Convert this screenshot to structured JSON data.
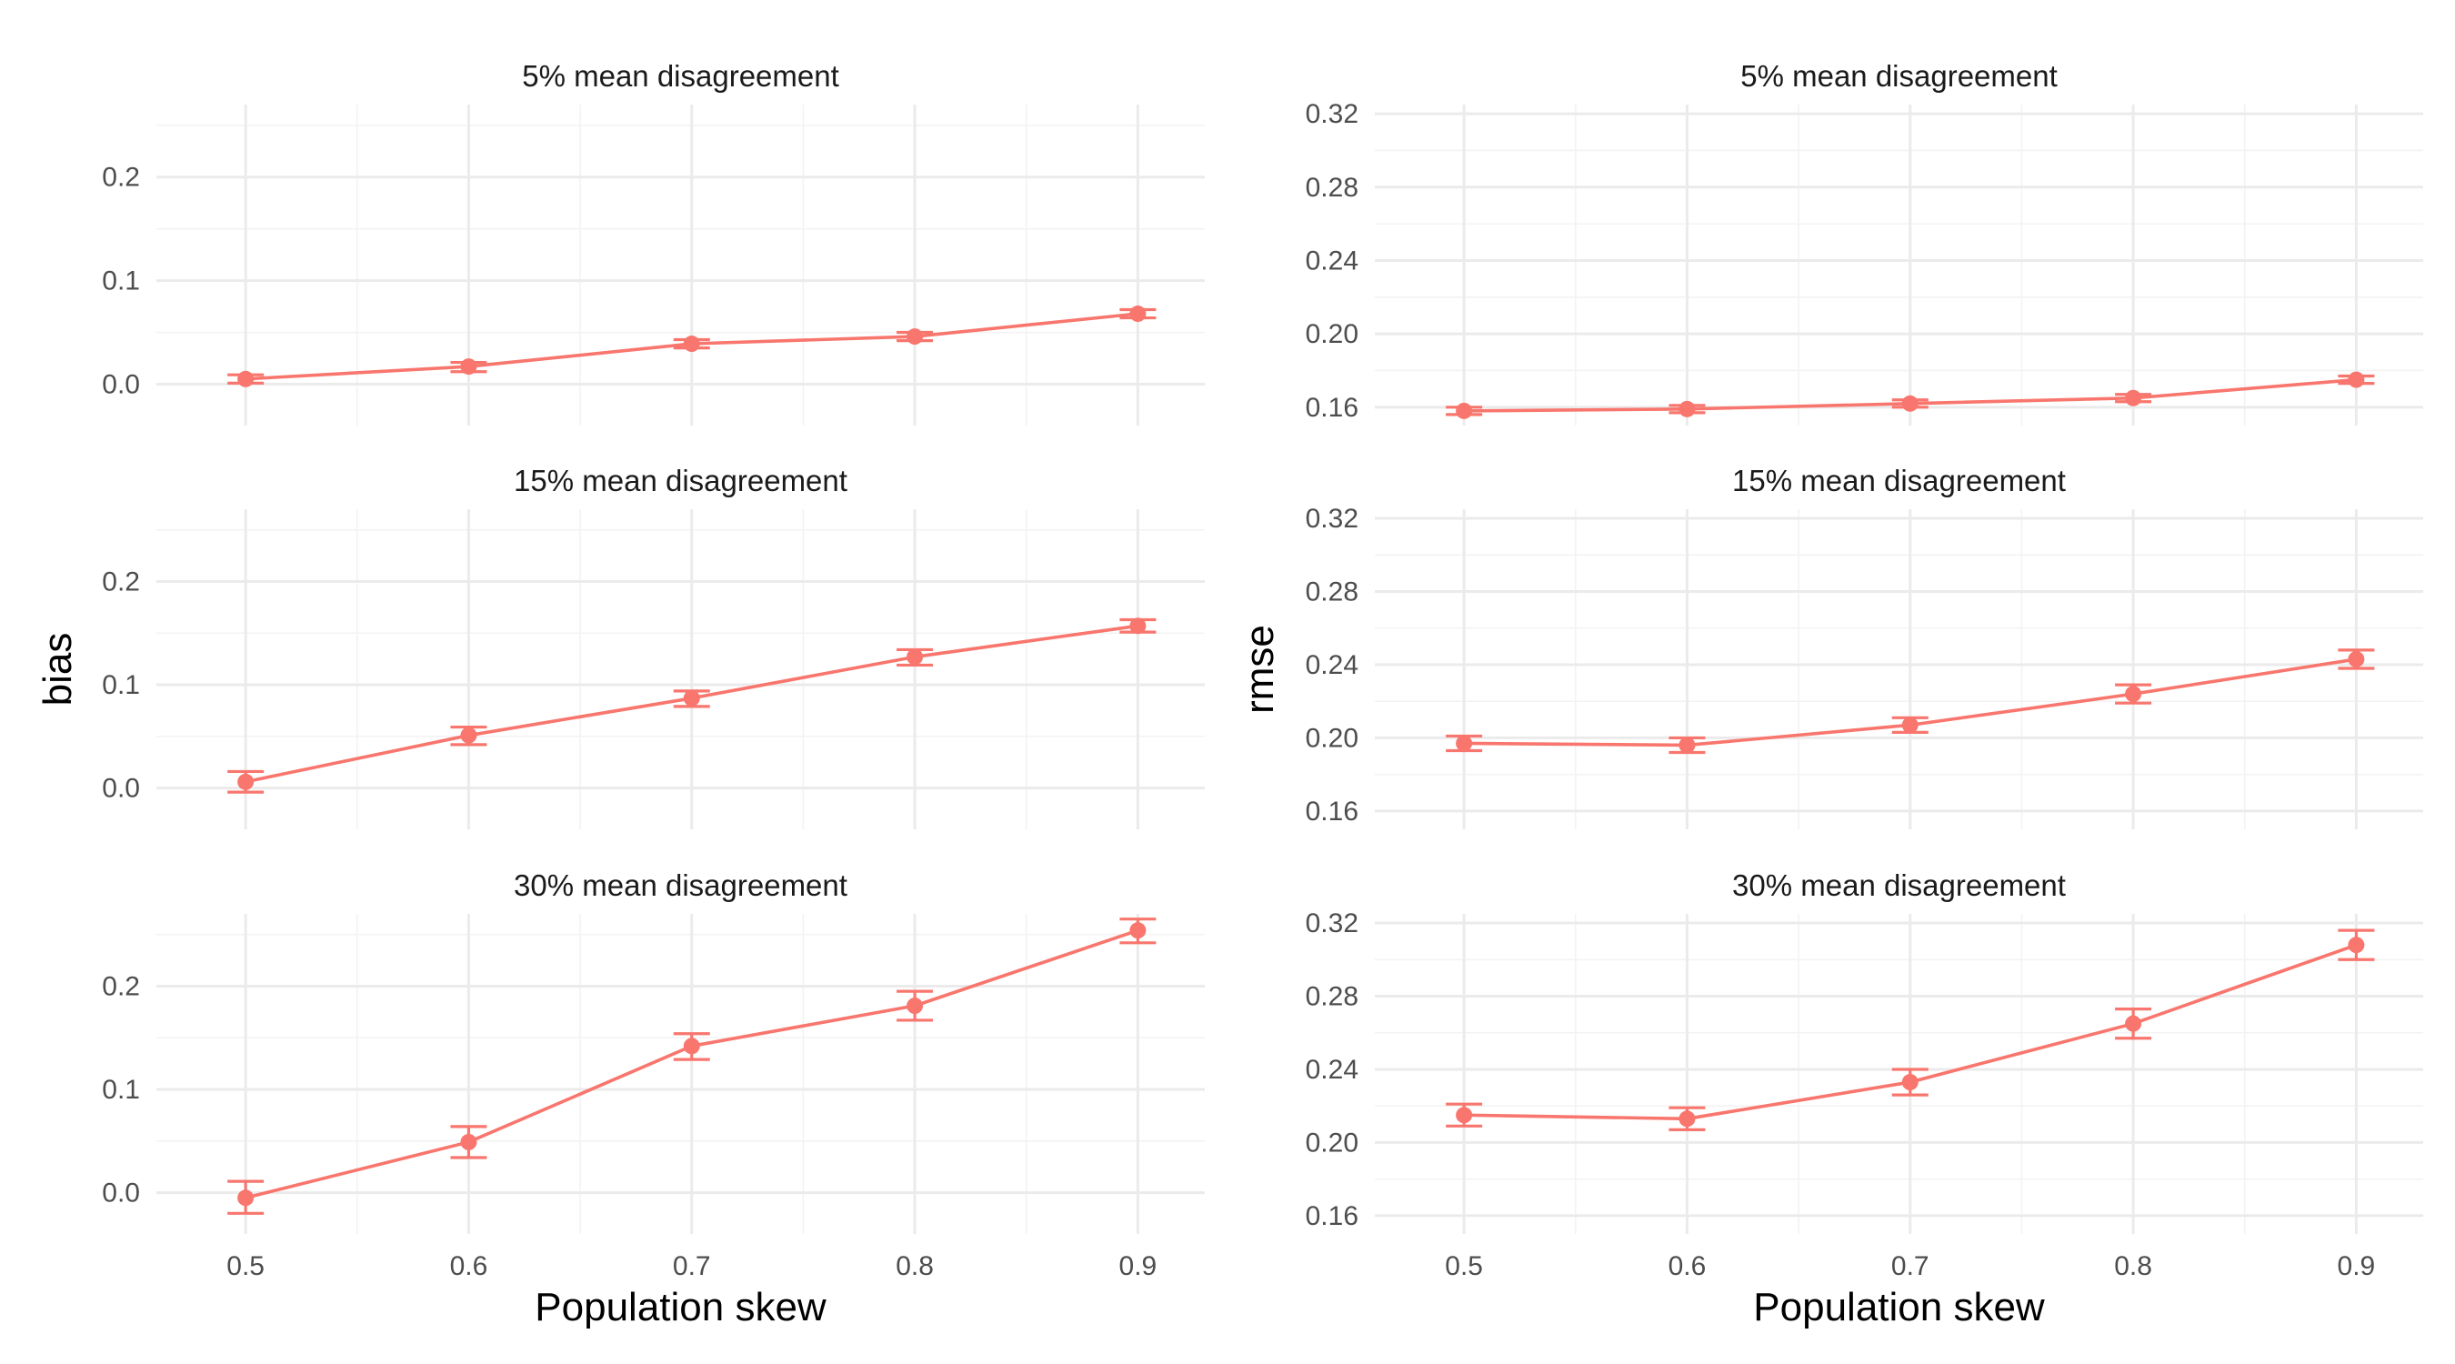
{
  "chart_data": {
    "type": "line",
    "xlabel": "Population skew",
    "colors": {
      "series": "#F8766D"
    },
    "grid": true,
    "legend": "none",
    "columns": [
      {
        "ylabel": "bias",
        "ylim": [
          -0.04,
          0.27
        ],
        "yticks": [
          0.0,
          0.1,
          0.2
        ],
        "ytick_labels": [
          "0.0",
          "0.1",
          "0.2"
        ],
        "panels": [
          {
            "title": "5% mean disagreement",
            "x": [
              0.5,
              0.6,
              0.7,
              0.8,
              0.9
            ],
            "y": [
              0.005,
              0.017,
              0.039,
              0.046,
              0.068
            ],
            "err_low": [
              0.001,
              0.012,
              0.035,
              0.042,
              0.064
            ],
            "err_high": [
              0.009,
              0.021,
              0.043,
              0.05,
              0.072
            ]
          },
          {
            "title": "15% mean disagreement",
            "x": [
              0.5,
              0.6,
              0.7,
              0.8,
              0.9
            ],
            "y": [
              0.006,
              0.051,
              0.087,
              0.127,
              0.157
            ],
            "err_low": [
              -0.004,
              0.042,
              0.079,
              0.119,
              0.151
            ],
            "err_high": [
              0.016,
              0.059,
              0.094,
              0.134,
              0.163
            ]
          },
          {
            "title": "30% mean disagreement",
            "x": [
              0.5,
              0.6,
              0.7,
              0.8,
              0.9
            ],
            "y": [
              -0.005,
              0.049,
              0.142,
              0.181,
              0.254
            ],
            "err_low": [
              -0.02,
              0.034,
              0.129,
              0.167,
              0.242
            ],
            "err_high": [
              0.011,
              0.064,
              0.154,
              0.195,
              0.265
            ]
          }
        ]
      },
      {
        "ylabel": "rmse",
        "ylim": [
          0.15,
          0.325
        ],
        "yticks": [
          0.16,
          0.2,
          0.24,
          0.28,
          0.32
        ],
        "ytick_labels": [
          "0.16",
          "0.20",
          "0.24",
          "0.28",
          "0.32"
        ],
        "panels": [
          {
            "title": "5% mean disagreement",
            "x": [
              0.5,
              0.6,
              0.7,
              0.8,
              0.9
            ],
            "y": [
              0.158,
              0.159,
              0.162,
              0.165,
              0.175
            ],
            "err_low": [
              0.156,
              0.157,
              0.16,
              0.163,
              0.173
            ],
            "err_high": [
              0.16,
              0.161,
              0.164,
              0.167,
              0.177
            ]
          },
          {
            "title": "15% mean disagreement",
            "x": [
              0.5,
              0.6,
              0.7,
              0.8,
              0.9
            ],
            "y": [
              0.197,
              0.196,
              0.207,
              0.224,
              0.243
            ],
            "err_low": [
              0.193,
              0.192,
              0.203,
              0.219,
              0.238
            ],
            "err_high": [
              0.201,
              0.2,
              0.211,
              0.229,
              0.248
            ]
          },
          {
            "title": "30% mean disagreement",
            "x": [
              0.5,
              0.6,
              0.7,
              0.8,
              0.9
            ],
            "y": [
              0.215,
              0.213,
              0.233,
              0.265,
              0.308
            ],
            "err_low": [
              0.209,
              0.207,
              0.226,
              0.257,
              0.3
            ],
            "err_high": [
              0.221,
              0.219,
              0.24,
              0.273,
              0.316
            ]
          }
        ]
      }
    ],
    "xlim": [
      0.46,
      0.93
    ],
    "xticks": [
      0.5,
      0.6,
      0.7,
      0.8,
      0.9
    ],
    "xtick_labels": [
      "0.5",
      "0.6",
      "0.7",
      "0.8",
      "0.9"
    ]
  }
}
